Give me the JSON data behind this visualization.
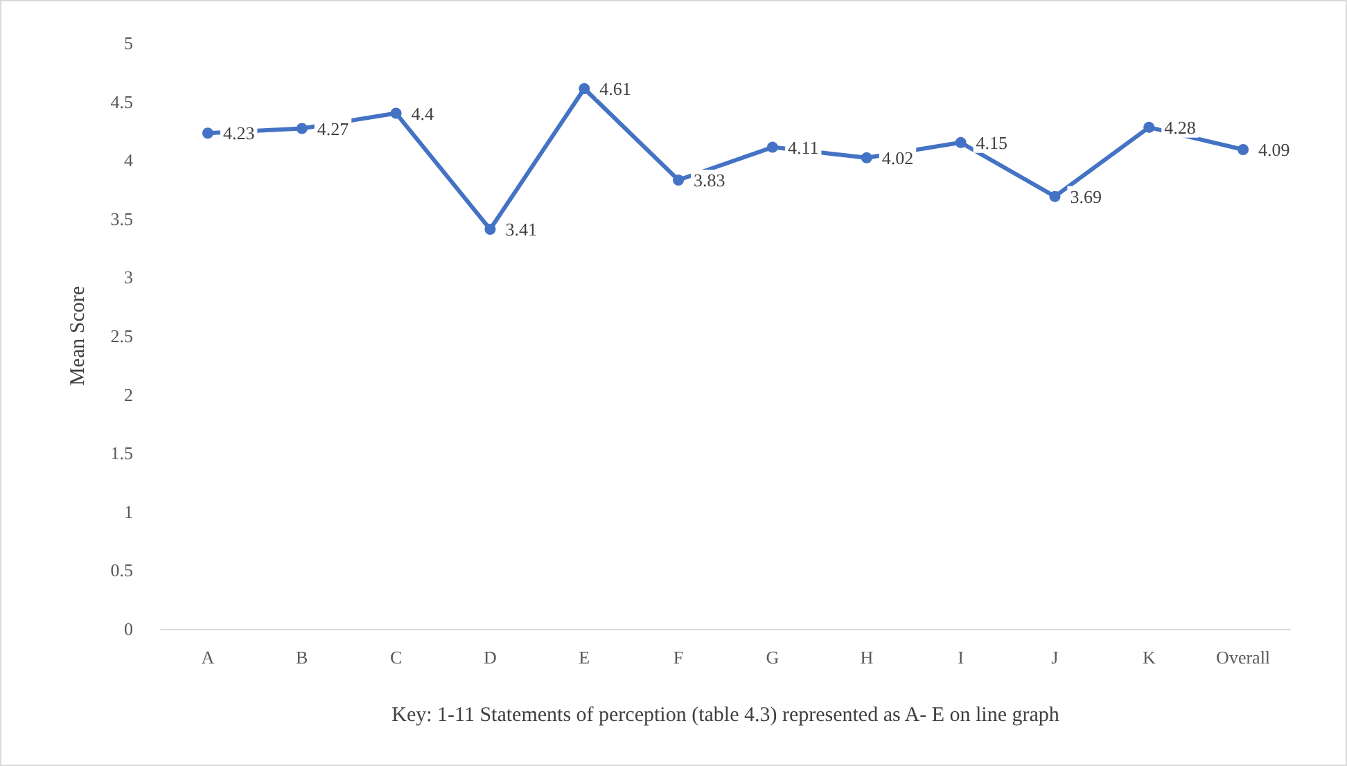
{
  "chart_data": {
    "type": "line",
    "ylabel": "Mean Score",
    "xlabel": "Key: 1-11 Statements of perception (table 4.3) represented as A- E on line graph",
    "categories": [
      "A",
      "B",
      "C",
      "D",
      "E",
      "F",
      "G",
      "H",
      "I",
      "J",
      "K",
      "Overall"
    ],
    "series": [
      {
        "color": "#4472c4",
        "values": [
          4.23,
          4.27,
          4.4,
          3.41,
          4.61,
          3.83,
          4.11,
          4.02,
          4.15,
          3.69,
          4.28,
          4.09
        ]
      }
    ],
    "ylim": [
      0,
      5
    ],
    "yticks": [
      0,
      0.5,
      1,
      1.5,
      2,
      2.5,
      3,
      3.5,
      4,
      4.5,
      5
    ],
    "grid": false,
    "marker": "circle",
    "line_style": "solid",
    "data_labels": true
  }
}
